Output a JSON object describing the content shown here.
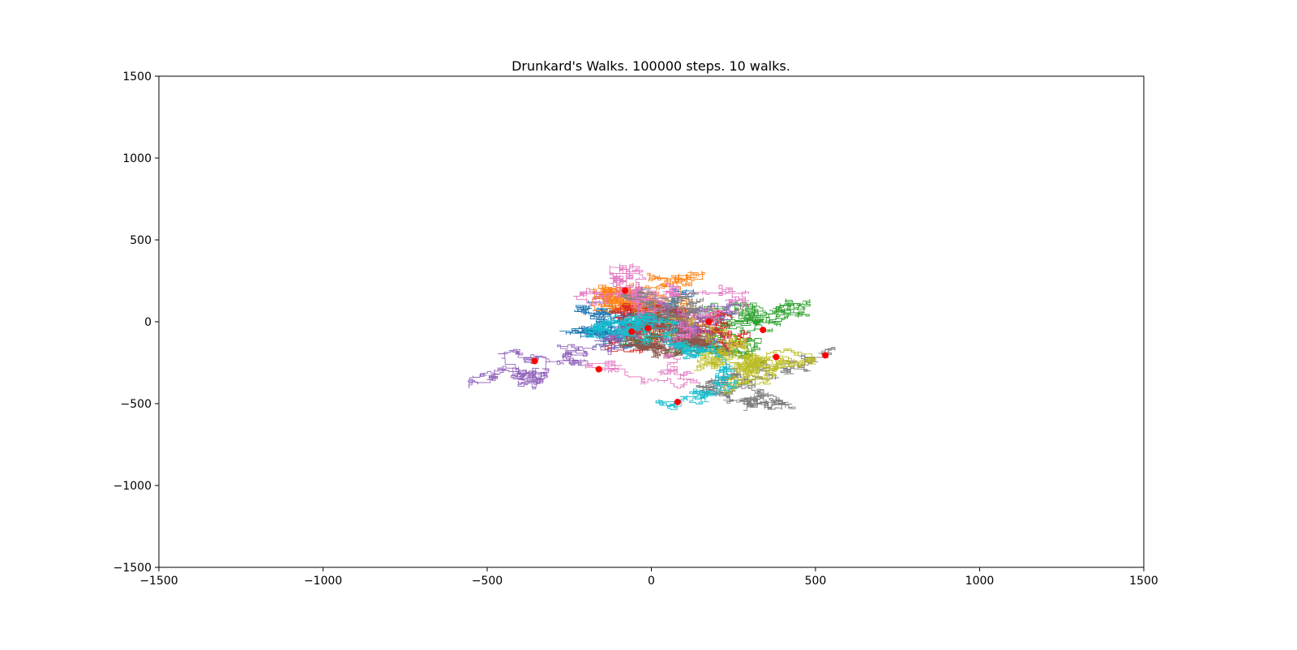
{
  "chart_data": {
    "type": "line",
    "title": "Drunkard's Walks. 100000 steps. 10 walks.",
    "xlabel": "",
    "ylabel": "",
    "xlim": [
      -1500,
      1500
    ],
    "ylim": [
      -1500,
      1500
    ],
    "xticks": [
      -1500,
      -1000,
      -500,
      0,
      500,
      1000,
      1500
    ],
    "yticks": [
      -1500,
      -1000,
      -500,
      0,
      500,
      1000,
      1500
    ],
    "xtick_labels": [
      "−1500",
      "−1000",
      "−500",
      "0",
      "500",
      "1000",
      "1500"
    ],
    "ytick_labels": [
      "−1500",
      "−1000",
      "−500",
      "0",
      "500",
      "1000",
      "1500"
    ],
    "grid": false,
    "legend": "none",
    "start_point": [
      0,
      0
    ],
    "end_marker_color": "#ff0000",
    "series": [
      {
        "color": "#1f77b4",
        "seed": 11,
        "end": [
          -10,
          -40
        ]
      },
      {
        "color": "#ff7f0e",
        "seed": 23,
        "end": [
          -80,
          190
        ]
      },
      {
        "color": "#2ca02c",
        "seed": 37,
        "end": [
          340,
          -50
        ]
      },
      {
        "color": "#d62728",
        "seed": 41,
        "end": [
          175,
          0
        ]
      },
      {
        "color": "#9467bd",
        "seed": 53,
        "end": [
          -355,
          -240
        ]
      },
      {
        "color": "#8c564b",
        "seed": 67,
        "end": [
          -60,
          -60
        ]
      },
      {
        "color": "#e377c2",
        "seed": 71,
        "end": [
          -160,
          -290
        ]
      },
      {
        "color": "#7f7f7f",
        "seed": 83,
        "end": [
          530,
          -205
        ]
      },
      {
        "color": "#bcbd22",
        "seed": 97,
        "end": [
          380,
          -215
        ]
      },
      {
        "color": "#17becf",
        "seed": 101,
        "end": [
          80,
          -490
        ]
      }
    ]
  }
}
